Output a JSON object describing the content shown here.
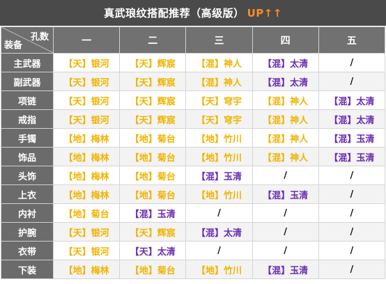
{
  "title": {
    "main": "真武琅纹搭配推荐（高级版）",
    "up": "UP↑↑"
  },
  "header": {
    "corner_top": "孔数",
    "corner_bottom": "装备",
    "columns": [
      "一",
      "二",
      "三",
      "四",
      "五"
    ]
  },
  "colors": {
    "yellow": "#f0b400",
    "purple": "#6a2db2"
  },
  "rows": [
    {
      "label": "主武器",
      "cells": [
        "【天】银河",
        "【天】辉宸",
        "【混】神人",
        "【混】太清",
        "/"
      ]
    },
    {
      "label": "副武器",
      "cells": [
        "【天】银河",
        "【天】辉宸",
        "【混】神人",
        "【混】太清",
        "/"
      ]
    },
    {
      "label": "项链",
      "cells": [
        "【天】银河",
        "【天】辉宸",
        "【天】穹宇",
        "【混】神人",
        "【混】太清"
      ]
    },
    {
      "label": "戒指",
      "cells": [
        "【天】银河",
        "【天】辉宸",
        "【天】穹宇",
        "【混】神人",
        "【混】太清"
      ]
    },
    {
      "label": "手镯",
      "cells": [
        "【地】梅林",
        "【地】菊台",
        "【地】竹川",
        "【混】神人",
        "【混】玉清"
      ]
    },
    {
      "label": "饰品",
      "cells": [
        "【地】梅林",
        "【地】菊台",
        "【地】竹川",
        "【混】神人",
        "【混】玉清"
      ]
    },
    {
      "label": "头饰",
      "cells": [
        "【地】梅林",
        "【地】菊台",
        "【混】玉清",
        "/",
        "/"
      ]
    },
    {
      "label": "上衣",
      "cells": [
        "【地】梅林",
        "【地】菊台",
        "【地】竹川",
        "【混】玉清",
        "/"
      ]
    },
    {
      "label": "内衬",
      "cells": [
        "【地】菊台",
        "【混】玉清",
        "/",
        "/",
        "/"
      ]
    },
    {
      "label": "护腕",
      "cells": [
        "【天】银河",
        "【天】辉宸",
        "【混】太清",
        "/",
        "/"
      ]
    },
    {
      "label": "衣带",
      "cells": [
        "【天】银河",
        "【天】太清",
        "/",
        "/",
        "/"
      ]
    },
    {
      "label": "下装",
      "cells": [
        "【地】梅林",
        "【地】菊台",
        "【地】竹川",
        "【混】玉清",
        "/"
      ]
    }
  ],
  "cell_colors": [
    [
      "yellow",
      "yellow",
      "yellow",
      "purple",
      "dash"
    ],
    [
      "yellow",
      "yellow",
      "yellow",
      "purple",
      "dash"
    ],
    [
      "yellow",
      "yellow",
      "yellow",
      "yellow",
      "purple"
    ],
    [
      "yellow",
      "yellow",
      "yellow",
      "yellow",
      "purple"
    ],
    [
      "yellow",
      "yellow",
      "yellow",
      "yellow",
      "purple"
    ],
    [
      "yellow",
      "yellow",
      "yellow",
      "yellow",
      "purple"
    ],
    [
      "yellow",
      "yellow",
      "purple",
      "dash",
      "dash"
    ],
    [
      "yellow",
      "yellow",
      "yellow",
      "purple",
      "dash"
    ],
    [
      "yellow",
      "purple",
      "dash",
      "dash",
      "dash"
    ],
    [
      "yellow",
      "yellow",
      "purple",
      "dash",
      "dash"
    ],
    [
      "yellow",
      "purple",
      "dash",
      "dash",
      "dash"
    ],
    [
      "yellow",
      "yellow",
      "yellow",
      "purple",
      "dash"
    ]
  ]
}
